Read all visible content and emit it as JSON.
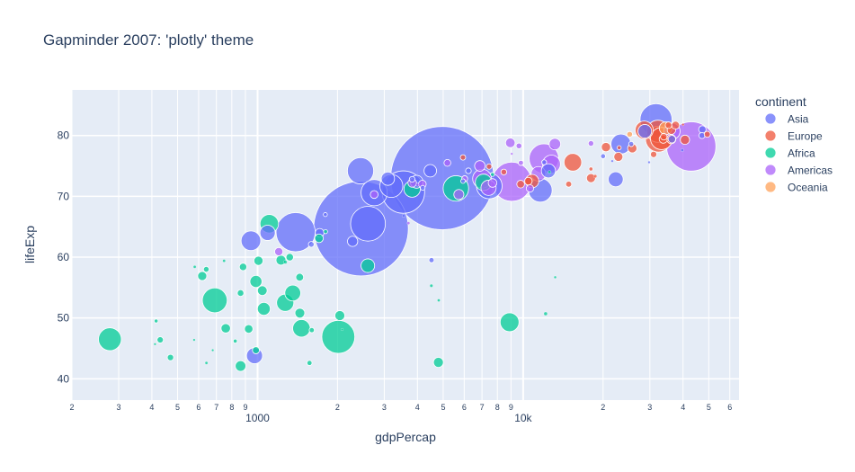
{
  "chart_data": {
    "type": "scatter",
    "title": "Gapminder 2007: 'plotly' theme",
    "xlabel": "gdpPercap",
    "ylabel": "lifeExp",
    "x_scale": "log",
    "xlim": [
      200,
      65000
    ],
    "ylim": [
      36.5,
      87.5
    ],
    "grid": true,
    "legend_title": "continent",
    "legend_position": "right",
    "x_major_ticks": [
      {
        "v": 1000,
        "label": "1000"
      },
      {
        "v": 10000,
        "label": "10k"
      }
    ],
    "x_minor_ticks": [
      {
        "v": 200,
        "label": "2"
      },
      {
        "v": 300,
        "label": "3"
      },
      {
        "v": 400,
        "label": "4"
      },
      {
        "v": 500,
        "label": "5"
      },
      {
        "v": 600,
        "label": "6"
      },
      {
        "v": 700,
        "label": "7"
      },
      {
        "v": 800,
        "label": "8"
      },
      {
        "v": 900,
        "label": "9"
      },
      {
        "v": 2000,
        "label": "2"
      },
      {
        "v": 3000,
        "label": "3"
      },
      {
        "v": 4000,
        "label": "4"
      },
      {
        "v": 5000,
        "label": "5"
      },
      {
        "v": 6000,
        "label": "6"
      },
      {
        "v": 7000,
        "label": "7"
      },
      {
        "v": 8000,
        "label": "8"
      },
      {
        "v": 9000,
        "label": "9"
      },
      {
        "v": 20000,
        "label": "2"
      },
      {
        "v": 30000,
        "label": "3"
      },
      {
        "v": 40000,
        "label": "4"
      },
      {
        "v": 50000,
        "label": "5"
      },
      {
        "v": 60000,
        "label": "6"
      }
    ],
    "y_ticks": [
      {
        "v": 40,
        "label": "40"
      },
      {
        "v": 50,
        "label": "50"
      },
      {
        "v": 60,
        "label": "60"
      },
      {
        "v": 70,
        "label": "70"
      },
      {
        "v": 80,
        "label": "80"
      }
    ],
    "size_note": "marker radius ~ sqrt(population in millions)",
    "series": [
      {
        "name": "Asia",
        "color": "#636efa",
        "points": [
          [
            4959,
            73.0,
            1319
          ],
          [
            2452,
            64.7,
            1110
          ],
          [
            3541,
            70.7,
            223
          ],
          [
            2605,
            65.5,
            150
          ],
          [
            1391,
            64.1,
            190
          ],
          [
            31656,
            82.6,
            127
          ],
          [
            7458,
            71.7,
            81.3
          ],
          [
            2442,
            74.2,
            85.3
          ],
          [
            3190,
            71.7,
            65.1
          ],
          [
            28718,
            80.7,
            22.9
          ],
          [
            23348,
            78.6,
            49.0
          ],
          [
            47143,
            80.0,
            4.6
          ],
          [
            4471,
            74.2,
            19.3
          ],
          [
            12452,
            74.2,
            24.8
          ],
          [
            11606,
            71.0,
            69.5
          ],
          [
            1091,
            64.0,
            28.9
          ],
          [
            944,
            62.7,
            47.8
          ],
          [
            22316,
            72.8,
            27.6
          ],
          [
            974,
            43.8,
            31.9
          ],
          [
            1713,
            64.0,
            9.5
          ],
          [
            4186,
            71.4,
            2.9
          ],
          [
            3970,
            72.4,
            20.4
          ],
          [
            2749,
            70.6,
            85.3
          ],
          [
            3096,
            72.9,
            22.0
          ],
          [
            6223,
            74.2,
            4.0
          ],
          [
            1593,
            62.1,
            4.1
          ],
          [
            25523,
            78.6,
            3.2
          ],
          [
            39725,
            77.6,
            1.2
          ],
          [
            29796,
            75.6,
            0.7
          ],
          [
            3548,
            66.8,
            1.3
          ],
          [
            4519,
            59.5,
            3.4
          ],
          [
            3820,
            72.8,
            4.0
          ],
          [
            5937,
            72.5,
            2.5
          ],
          [
            12000,
            75.6,
            3.1
          ],
          [
            36319,
            79.4,
            7.0
          ],
          [
            20000,
            76.6,
            3.0
          ],
          [
            1800,
            67.0,
            2.0
          ],
          [
            21654,
            75.8,
            0.7
          ],
          [
            2280,
            62.6,
            13.0
          ],
          [
            47306,
            81.0,
            6.9
          ]
        ]
      },
      {
        "name": "Europe",
        "color": "#ef553b",
        "points": [
          [
            32170,
            80.7,
            60.9
          ],
          [
            32317,
            79.4,
            82.4
          ],
          [
            33203,
            79.5,
            60.8
          ],
          [
            28570,
            80.9,
            40.5
          ],
          [
            36126,
            79.4,
            10.4
          ],
          [
            33692,
            79.4,
            8.2
          ],
          [
            40676,
            79.3,
            10.7
          ],
          [
            49357,
            80.2,
            4.6
          ],
          [
            35278,
            81.7,
            5.4
          ],
          [
            33860,
            79.8,
            5.4
          ],
          [
            36181,
            80.9,
            9.0
          ],
          [
            37506,
            81.7,
            7.6
          ],
          [
            25768,
            77.9,
            10.6
          ],
          [
            22833,
            76.5,
            10.2
          ],
          [
            18009,
            73.0,
            10.0
          ],
          [
            15390,
            75.6,
            38.5
          ],
          [
            20510,
            78.1,
            10.6
          ],
          [
            14843,
            72.0,
            4.5
          ],
          [
            18678,
            73.3,
            1.3
          ],
          [
            10808,
            72.5,
            22.3
          ],
          [
            9787,
            72.0,
            7.3
          ],
          [
            8458,
            74.0,
            4.1
          ],
          [
            10461,
            72.5,
            7.3
          ],
          [
            7446,
            74.9,
            3.6
          ],
          [
            18000,
            74.5,
            2.0
          ],
          [
            5937,
            76.4,
            3.6
          ],
          [
            40000,
            81.8,
            0.3
          ],
          [
            31000,
            76.9,
            5.0
          ],
          [
            23000,
            78.0,
            2.0
          ]
        ]
      },
      {
        "name": "Africa",
        "color": "#00cc96",
        "points": [
          [
            2014,
            46.9,
            135
          ],
          [
            1443,
            50.8,
            12.0
          ],
          [
            2041,
            50.4,
            12.3
          ],
          [
            5581,
            71.3,
            80.3
          ],
          [
            690,
            52.9,
            76.5
          ],
          [
            8892,
            49.3,
            43.9
          ],
          [
            1463,
            48.3,
            38.1
          ],
          [
            1107,
            65.5,
            42.3
          ],
          [
            1271,
            52.5,
            36.6
          ],
          [
            1357,
            54.1,
            31.2
          ],
          [
            2602,
            58.6,
            22.9
          ],
          [
            278,
            46.5,
            64.6
          ],
          [
            1056,
            51.5,
            20.4
          ],
          [
            986,
            56.0,
            18.0
          ],
          [
            1704,
            63.1,
            9.2
          ],
          [
            7093,
            72.3,
            33.3
          ],
          [
            3820,
            71.2,
            33.3
          ],
          [
            4797,
            42.7,
            12.3
          ],
          [
            863,
            42.1,
            14.0
          ],
          [
            1225,
            59.5,
            12.3
          ],
          [
            619,
            56.9,
            10.2
          ],
          [
            430,
            46.4,
            5.0
          ],
          [
            1042,
            54.5,
            11.7
          ],
          [
            882,
            58.4,
            6.9
          ],
          [
            759,
            48.3,
            11.1
          ],
          [
            1569,
            42.6,
            3.2
          ],
          [
            1008,
            59.4,
            10.3
          ],
          [
            926,
            48.2,
            9.0
          ],
          [
            1441,
            56.7,
            7.5
          ],
          [
            986,
            44.7,
            6.1
          ],
          [
            863,
            54.1,
            5.4
          ],
          [
            1600,
            48.0,
            3.3
          ],
          [
            415,
            49.5,
            1.9
          ],
          [
            470,
            43.5,
            5.0
          ],
          [
            641,
            58.0,
            4.0
          ],
          [
            824,
            46.2,
            2.0
          ],
          [
            1322,
            60.0,
            7.0
          ],
          [
            1272,
            59.2,
            1.5
          ],
          [
            1803,
            64.2,
            2.0
          ],
          [
            7670,
            73.6,
            2.0
          ],
          [
            12570,
            74.0,
            1.1
          ],
          [
            4513,
            55.3,
            1.2
          ],
          [
            13206,
            56.7,
            0.8
          ],
          [
            4811,
            52.9,
            1.0
          ],
          [
            12154,
            50.7,
            1.6
          ],
          [
            580,
            58.4,
            1.0
          ],
          [
            642,
            42.6,
            1.0
          ],
          [
            748,
            59.4,
            1.0
          ],
          [
            678,
            44.7,
            0.4
          ],
          [
            577,
            46.4,
            0.3
          ],
          [
            411,
            45.7,
            0.5
          ],
          [
            2082,
            48.1,
            0.2
          ]
        ]
      },
      {
        "name": "Americas",
        "color": "#ab63fa",
        "points": [
          [
            42952,
            78.2,
            301
          ],
          [
            9066,
            72.4,
            190
          ],
          [
            11978,
            76.2,
            108
          ],
          [
            36319,
            80.7,
            33.4
          ],
          [
            7007,
            72.9,
            44.2
          ],
          [
            12779,
            75.3,
            40.3
          ],
          [
            7409,
            71.4,
            28.7
          ],
          [
            11416,
            73.7,
            26.1
          ],
          [
            13172,
            78.6,
            16.3
          ],
          [
            5728,
            70.3,
            12.6
          ],
          [
            6873,
            75.0,
            13.8
          ],
          [
            7670,
            72.2,
            9.3
          ],
          [
            3822,
            72.2,
            9.1
          ],
          [
            9646,
            78.3,
            4.1
          ],
          [
            6025,
            72.9,
            4.4
          ],
          [
            8948,
            78.8,
            11.4
          ],
          [
            4172,
            72.0,
            7.5
          ],
          [
            2749,
            70.3,
            7.5
          ],
          [
            1202,
            60.9,
            8.5
          ],
          [
            5186,
            75.5,
            5.8
          ],
          [
            10611,
            71.3,
            6.7
          ],
          [
            9809,
            75.5,
            3.3
          ],
          [
            18009,
            78.7,
            3.9
          ],
          [
            4000,
            71.9,
            1.3
          ],
          [
            3700,
            65.6,
            1.0
          ],
          [
            9064,
            77.0,
            0.6
          ]
        ]
      },
      {
        "name": "Oceania",
        "color": "#ffa15a",
        "points": [
          [
            34435,
            81.2,
            20.4
          ],
          [
            25185,
            80.2,
            4.1
          ]
        ]
      }
    ]
  }
}
